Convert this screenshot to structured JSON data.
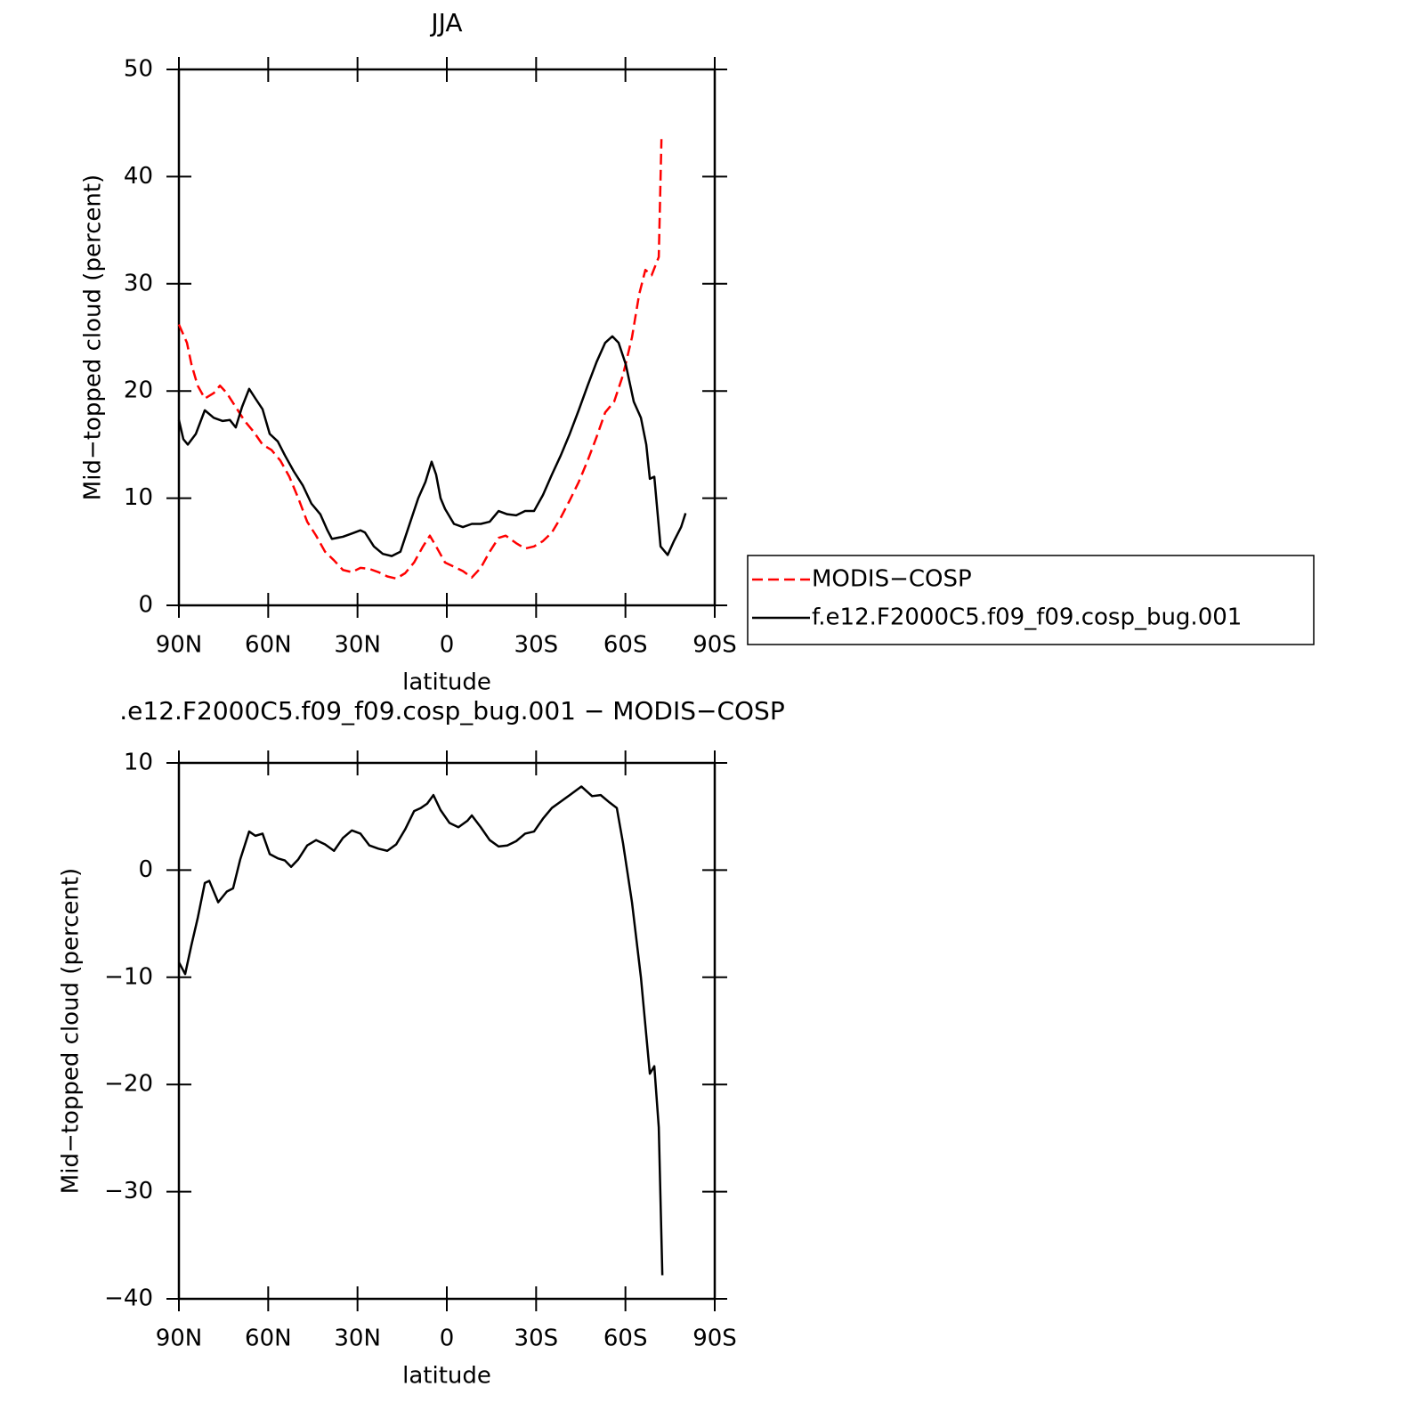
{
  "chart_data": [
    {
      "type": "line",
      "title": "JJA",
      "xlabel": "latitude",
      "ylabel": "Mid−topped cloud (percent)",
      "xlim": [
        90,
        -90
      ],
      "ylim": [
        0,
        50
      ],
      "xticks": [
        {
          "value": 90,
          "label": "90N"
        },
        {
          "value": 60,
          "label": "60N"
        },
        {
          "value": 30,
          "label": "30N"
        },
        0,
        {
          "value": -30,
          "label": "30S"
        },
        {
          "value": -60,
          "label": "60S"
        },
        {
          "value": -90,
          "label": "90S"
        }
      ],
      "yticks": [
        0,
        10,
        20,
        30,
        40,
        50
      ],
      "legend": "right",
      "series": [
        {
          "name": "MODIS−COSP",
          "color": "#ff0000",
          "linestyle": "dashed",
          "x": [
            90,
            87.3,
            85.8,
            83.7,
            81.3,
            78.3,
            76.2,
            73.9,
            70.9,
            67.9,
            64.9,
            61.9,
            58.9,
            55.9,
            52.9,
            49.9,
            46.9,
            43.9,
            40.9,
            37.9,
            34.9,
            31.9,
            29,
            26,
            23,
            20,
            17,
            14,
            11,
            8,
            5.7,
            3.6,
            0.6,
            -2.4,
            -5.4,
            -8.4,
            -11.4,
            -14.4,
            -17.4,
            -19.8,
            -23.3,
            -26.3,
            -29.3,
            -32.3,
            -35.3,
            -38.3,
            -41.3,
            -44.3,
            -47.3,
            -50.3,
            -53.2,
            -56.2,
            -59.2,
            -62.2,
            -64.6,
            -66.7,
            -68.8,
            -71.2,
            -72.1
          ],
          "values": [
            26.2,
            24.5,
            22.5,
            20.5,
            19.3,
            19.8,
            20.5,
            19.8,
            18.5,
            17.2,
            16.2,
            15,
            14.5,
            13.5,
            12,
            10,
            7.8,
            6.5,
            5,
            4.2,
            3.3,
            3.1,
            3.5,
            3.4,
            3.1,
            2.7,
            2.5,
            3,
            4,
            5.5,
            6.5,
            5.5,
            4,
            3.6,
            3.2,
            2.6,
            3.5,
            5,
            6.3,
            6.5,
            5.8,
            5.3,
            5.5,
            6,
            6.8,
            8.2,
            9.8,
            11.5,
            13.5,
            15.7,
            18,
            19,
            21.5,
            25,
            29,
            31.3,
            30.8,
            32.5,
            43.5
          ]
        },
        {
          "name": "f.e12.F2000C5.f09_f09.cosp_bug.001",
          "color": "#000000",
          "linestyle": "solid",
          "x": [
            90,
            88.5,
            87,
            84.3,
            81.3,
            78.3,
            75.3,
            72.9,
            70.9,
            68.8,
            66.4,
            64.3,
            61.9,
            59.5,
            56.8,
            54.4,
            51.4,
            48.4,
            45.5,
            42.5,
            40.1,
            38.6,
            34.9,
            31.9,
            29,
            27.5,
            24.5,
            21.5,
            18.5,
            15.6,
            12.6,
            9.6,
            7.2,
            5.1,
            3.6,
            2.1,
            0.6,
            -2.4,
            -5.4,
            -8.4,
            -11.4,
            -14.4,
            -17.4,
            -20.3,
            -23.3,
            -26.3,
            -29.3,
            -32.3,
            -35.3,
            -38.3,
            -41.3,
            -44.3,
            -47.3,
            -50.3,
            -53.2,
            -55.6,
            -57.7,
            -60.1,
            -62.8,
            -65.2,
            -67,
            -68.2,
            -69.7,
            -71.8,
            -74.2,
            -76.3,
            -78.7,
            -80.2
          ],
          "values": [
            17.3,
            15.5,
            15,
            16,
            18.2,
            17.5,
            17.2,
            17.3,
            16.6,
            18.5,
            20.2,
            19.3,
            18.3,
            16,
            15.3,
            14,
            12.5,
            11.2,
            9.5,
            8.5,
            7,
            6.2,
            6.4,
            6.7,
            7,
            6.8,
            5.5,
            4.8,
            4.6,
            5,
            7.5,
            10,
            11.5,
            13.4,
            12.2,
            10,
            9,
            7.6,
            7.3,
            7.6,
            7.6,
            7.8,
            8.8,
            8.5,
            8.4,
            8.8,
            8.8,
            10.3,
            12.2,
            14,
            16,
            18.2,
            20.5,
            22.7,
            24.5,
            25.1,
            24.5,
            22.5,
            19,
            17.5,
            15,
            11.8,
            12,
            5.5,
            4.7,
            6,
            7.3,
            8.6
          ]
        }
      ]
    },
    {
      "type": "line",
      "title": ".e12.F2000C5.f09_f09.cosp_bug.001 − MODIS−COSP",
      "xlabel": "latitude",
      "ylabel": "Mid−topped cloud (percent)",
      "xlim": [
        90,
        -90
      ],
      "ylim": [
        -40,
        10
      ],
      "xticks": [
        {
          "value": 90,
          "label": "90N"
        },
        {
          "value": 60,
          "label": "60N"
        },
        {
          "value": 30,
          "label": "30N"
        },
        0,
        {
          "value": -30,
          "label": "30S"
        },
        {
          "value": -60,
          "label": "60S"
        },
        {
          "value": -90,
          "label": "90S"
        }
      ],
      "yticks": [
        {
          "value": -40,
          "label": "−40"
        },
        {
          "value": -30,
          "label": "−30"
        },
        {
          "value": -20,
          "label": "−20"
        },
        {
          "value": -10,
          "label": "−10"
        },
        0,
        10
      ],
      "series": [
        {
          "color": "#000000",
          "linestyle": "solid",
          "x": [
            90,
            87.9,
            85.8,
            83.7,
            81.3,
            79.8,
            76.8,
            73.9,
            71.8,
            69.4,
            66.4,
            64.3,
            61.9,
            59.5,
            56.8,
            54.4,
            52.3,
            49.9,
            46.9,
            43.9,
            40.9,
            37.9,
            34.9,
            31.9,
            29,
            26,
            23,
            20,
            17,
            14,
            11,
            8.7,
            6.6,
            4.5,
            2.1,
            -0.9,
            -3.9,
            -6.9,
            -8.4,
            -11.4,
            -14.4,
            -17.4,
            -20.3,
            -23.3,
            -26.3,
            -29.3,
            -32.3,
            -35.3,
            -38.3,
            -41.3,
            -45.2,
            -48.8,
            -51.7,
            -54.7,
            -57.1,
            -59.2,
            -62.2,
            -65.2,
            -68.2,
            -69.7,
            -71.2,
            -72.4
          ],
          "values": [
            -8.6,
            -9.7,
            -7,
            -4.5,
            -1.2,
            -1,
            -3,
            -2,
            -1.7,
            1,
            3.6,
            3.2,
            3.4,
            1.5,
            1.1,
            0.9,
            0.3,
            1,
            2.3,
            2.8,
            2.4,
            1.8,
            3,
            3.7,
            3.4,
            2.3,
            2,
            1.8,
            2.4,
            3.8,
            5.5,
            5.8,
            6.2,
            7,
            5.6,
            4.4,
            4,
            4.6,
            5.1,
            4,
            2.8,
            2.2,
            2.3,
            2.7,
            3.4,
            3.6,
            4.8,
            5.8,
            6.4,
            7,
            7.8,
            6.9,
            7,
            6.3,
            5.8,
            2.5,
            -3,
            -10,
            -19,
            -18.3,
            -24,
            -37.8
          ]
        }
      ]
    }
  ]
}
